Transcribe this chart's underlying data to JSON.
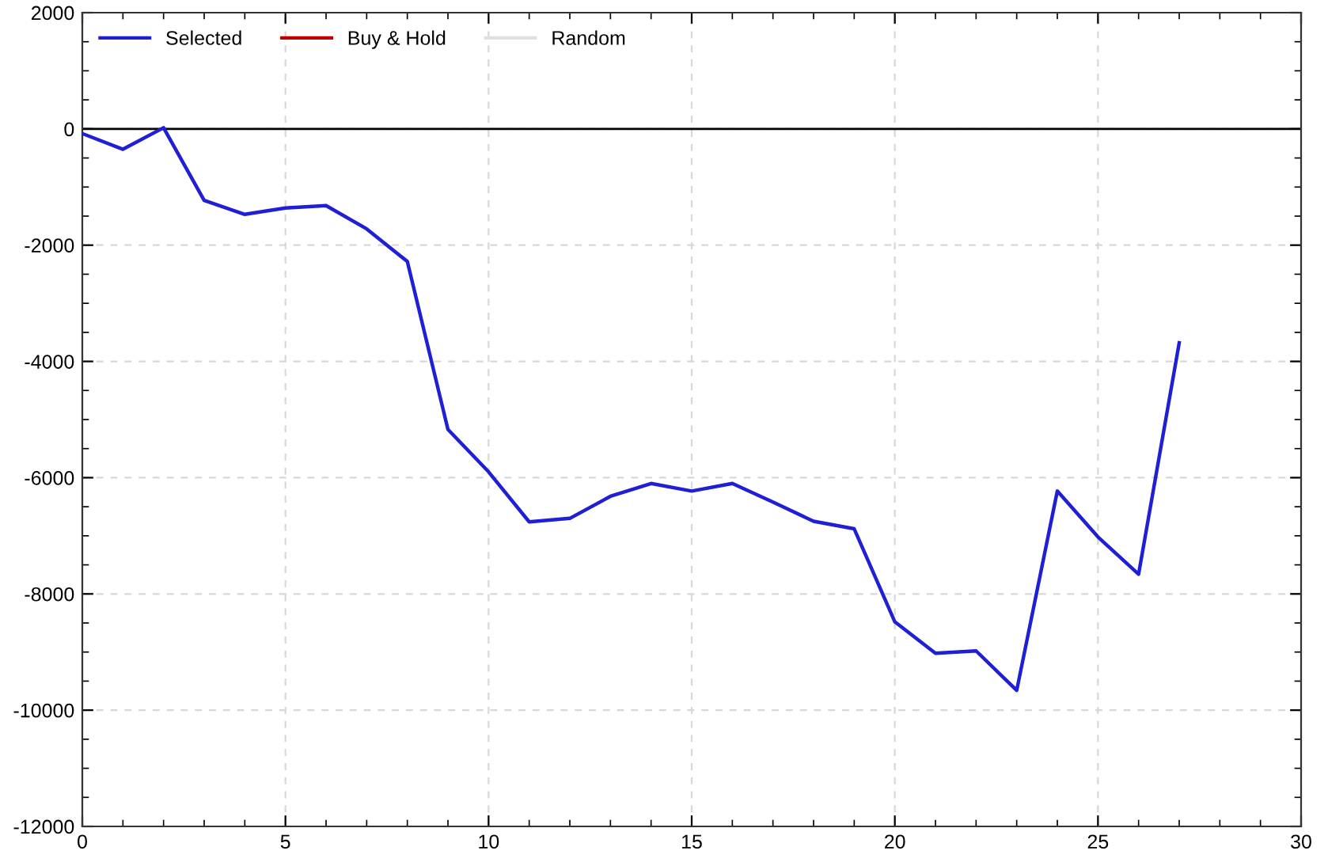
{
  "chart_data": {
    "type": "line",
    "x": [
      0,
      1,
      2,
      3,
      4,
      5,
      6,
      7,
      8,
      9,
      10,
      11,
      12,
      13,
      14,
      15,
      16,
      17,
      18,
      19,
      20,
      21,
      22,
      23,
      24,
      25,
      26,
      27
    ],
    "series": [
      {
        "name": "Selected",
        "color": "#1f1fd6",
        "values": [
          -80,
          -350,
          20,
          -1230,
          -1470,
          -1360,
          -1320,
          -1720,
          -2280,
          -5170,
          -5900,
          -6760,
          -6700,
          -6320,
          -6100,
          -6230,
          -6100,
          -6420,
          -6750,
          -6880,
          -8480,
          -9020,
          -8980,
          -9660,
          -6230,
          -7020,
          -7660,
          -3680
        ]
      },
      {
        "name": "Buy & Hold",
        "color": "#c00000",
        "values": [
          null,
          null,
          null,
          null,
          null,
          null,
          null,
          null,
          null,
          null,
          null,
          null,
          null,
          null,
          null,
          null,
          null,
          null,
          null,
          null,
          null,
          null,
          null,
          null,
          null,
          null,
          null,
          null
        ]
      },
      {
        "name": "Random",
        "color": "#e0e0e0",
        "values": [
          null,
          null,
          null,
          null,
          null,
          null,
          null,
          null,
          null,
          null,
          null,
          null,
          null,
          null,
          null,
          null,
          null,
          null,
          null,
          null,
          null,
          null,
          null,
          null,
          null,
          null,
          null,
          null
        ]
      }
    ],
    "xlim": [
      0,
      30
    ],
    "xticks": [
      0,
      5,
      10,
      15,
      20,
      25,
      30
    ],
    "ylim": [
      -12000,
      2000
    ],
    "yticks": [
      -12000,
      -10000,
      -8000,
      -6000,
      -4000,
      -2000,
      0,
      2000
    ],
    "ref_lines": [
      {
        "axis": "y",
        "value": 0,
        "color": "#000000"
      }
    ],
    "grid": true,
    "legend": "top left",
    "marker": "none",
    "line_style": "solid"
  }
}
